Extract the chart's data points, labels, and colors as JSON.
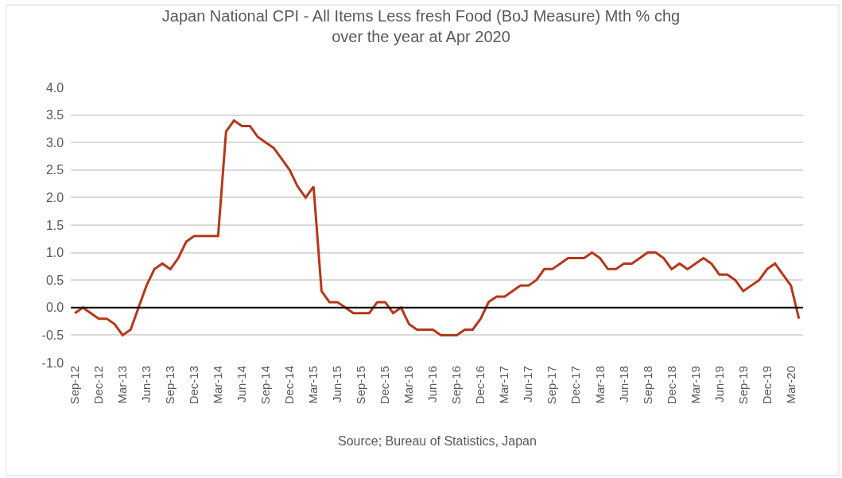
{
  "chart_data": {
    "type": "line",
    "title": "Japan National CPI - All Items Less fresh Food (BoJ Measure) Mth % chg over the year at Apr 2020",
    "categories": [
      "Sep-12",
      null,
      null,
      "Dec-12",
      null,
      null,
      "Mar-13",
      null,
      null,
      "Jun-13",
      null,
      null,
      "Sep-13",
      null,
      null,
      "Dec-13",
      null,
      null,
      "Mar-14",
      null,
      null,
      "Jun-14",
      null,
      null,
      "Sep-14",
      null,
      null,
      "Dec-14",
      null,
      null,
      "Mar-15",
      null,
      null,
      "Jun-15",
      null,
      null,
      "Sep-15",
      null,
      null,
      "Dec-15",
      null,
      null,
      "Mar-16",
      null,
      null,
      "Jun-16",
      null,
      null,
      "Sep-16",
      null,
      null,
      "Dec-16",
      null,
      null,
      "Mar-17",
      null,
      null,
      "Jun-17",
      null,
      null,
      "Sep-17",
      null,
      null,
      "Dec-17",
      null,
      null,
      "Mar-18",
      null,
      null,
      "Jun-18",
      null,
      null,
      "Sep-18",
      null,
      null,
      "Dec-18",
      null,
      null,
      "Mar-19",
      null,
      null,
      "Jun-19",
      null,
      null,
      "Sep-19",
      null,
      null,
      "Dec-19",
      null,
      null,
      "Mar-20",
      null
    ],
    "series": [
      {
        "color": "#b5371a",
        "values": [
          -0.1,
          0.0,
          -0.1,
          -0.2,
          -0.2,
          -0.3,
          -0.5,
          -0.4,
          0.0,
          0.4,
          0.7,
          0.8,
          0.7,
          0.9,
          1.2,
          1.3,
          1.3,
          1.3,
          1.3,
          3.2,
          3.4,
          3.3,
          3.3,
          3.1,
          3.0,
          2.9,
          2.7,
          2.5,
          2.2,
          2.0,
          2.2,
          0.3,
          0.1,
          0.1,
          0.0,
          -0.1,
          -0.1,
          -0.1,
          0.1,
          0.1,
          -0.1,
          0.0,
          -0.3,
          -0.4,
          -0.4,
          -0.4,
          -0.5,
          -0.5,
          -0.5,
          -0.4,
          -0.4,
          -0.2,
          0.1,
          0.2,
          0.2,
          0.3,
          0.4,
          0.4,
          0.5,
          0.7,
          0.7,
          0.8,
          0.9,
          0.9,
          0.9,
          1.0,
          0.9,
          0.7,
          0.7,
          0.8,
          0.8,
          0.9,
          1.0,
          1.0,
          0.9,
          0.7,
          0.8,
          0.7,
          0.8,
          0.9,
          0.8,
          0.6,
          0.6,
          0.5,
          0.3,
          0.4,
          0.5,
          0.7,
          0.8,
          0.6,
          0.4,
          -0.2
        ]
      }
    ],
    "ylim": [
      -1.0,
      4.0
    ],
    "yticks": [
      {
        "value": -1.0,
        "label": "-1.0"
      },
      {
        "value": -0.5,
        "label": "-0.5"
      },
      {
        "value": 0.0,
        "label": "0.0"
      },
      {
        "value": 0.5,
        "label": "0.5"
      },
      {
        "value": 1.0,
        "label": "1.0"
      },
      {
        "value": 1.5,
        "label": "1.5"
      },
      {
        "value": 2.0,
        "label": "2.0"
      },
      {
        "value": 2.5,
        "label": "2.5"
      },
      {
        "value": 3.0,
        "label": "3.0"
      },
      {
        "value": 3.5,
        "label": "3.5"
      },
      {
        "value": 4.0,
        "label": "4.0"
      }
    ],
    "ref_lines": [
      {
        "axis": "y",
        "value": 0.0,
        "color": "#000000"
      }
    ],
    "grid": "y",
    "marker": "none",
    "line_style": "solid",
    "annotations": [
      "Source; Bureau of Statistics, Japan"
    ]
  }
}
